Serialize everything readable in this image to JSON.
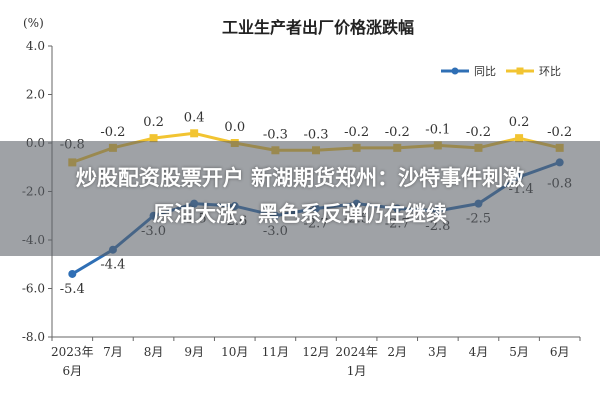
{
  "chart_data": {
    "type": "line",
    "title": "工业生产者出厂价格涨跌幅",
    "y_unit": "(%)",
    "ylim": [
      -8.0,
      4.0
    ],
    "y_ticks": [
      "4.0",
      "2.0",
      "0.0",
      "-2.0",
      "-4.0",
      "-6.0",
      "-8.0"
    ],
    "categories": [
      "2023年6月",
      "7月",
      "8月",
      "9月",
      "10月",
      "11月",
      "12月",
      "2024年1月",
      "2月",
      "3月",
      "4月",
      "5月",
      "6月"
    ],
    "category_lines": [
      [
        "2023年",
        "6月"
      ],
      [
        "7月"
      ],
      [
        "8月"
      ],
      [
        "9月"
      ],
      [
        "10月"
      ],
      [
        "11月"
      ],
      [
        "12月"
      ],
      [
        "2024年",
        "1月"
      ],
      [
        "2月"
      ],
      [
        "3月"
      ],
      [
        "4月"
      ],
      [
        "5月"
      ],
      [
        "6月"
      ]
    ],
    "legend_position": "top-right",
    "grid": false,
    "series": [
      {
        "name": "同比",
        "color": "#2f6fb5",
        "values": [
          -5.4,
          -4.4,
          -3.0,
          -2.5,
          -2.6,
          -3.0,
          -2.7,
          -2.5,
          -2.7,
          -2.8,
          -2.5,
          -1.4,
          -0.8
        ],
        "labels": [
          "-5.4",
          "-4.4",
          "-3.0",
          "-2.5",
          "-2.6",
          "-3.0",
          "-2.7",
          "-2.5",
          "-2.7",
          "-2.8",
          "-2.5",
          "-1.4",
          "-0.8"
        ]
      },
      {
        "name": "环比",
        "color": "#f2c431",
        "values": [
          -0.8,
          -0.2,
          0.2,
          0.4,
          0.0,
          -0.3,
          -0.3,
          -0.2,
          -0.2,
          -0.1,
          -0.2,
          0.2,
          -0.2
        ],
        "labels": [
          "-0.8",
          "-0.2",
          "0.2",
          "0.4",
          "0.0",
          "-0.3",
          "-0.3",
          "-0.2",
          "-0.2",
          "-0.1",
          "-0.2",
          "0.2",
          "-0.2"
        ]
      }
    ]
  },
  "overlay": {
    "line1": "炒股配资股票开户 新湖期货郑州：沙特事件刺激",
    "line2": "原油大涨，黑色系反弹仍在继续"
  }
}
